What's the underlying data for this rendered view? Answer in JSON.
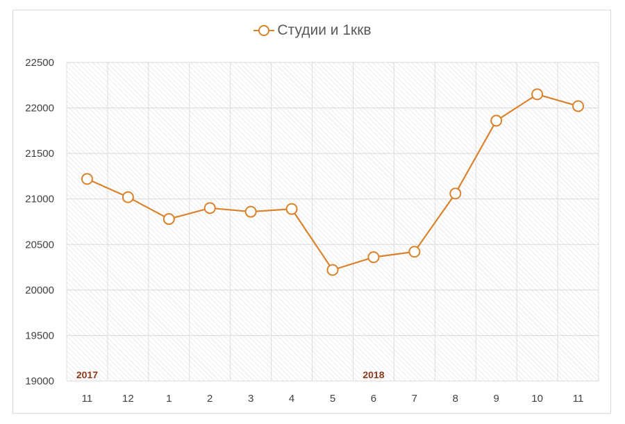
{
  "chart_data": {
    "type": "line",
    "title": "",
    "xlabel": "",
    "ylabel": "",
    "categories": [
      "11",
      "12",
      "1",
      "2",
      "3",
      "4",
      "5",
      "6",
      "7",
      "8",
      "9",
      "10",
      "11"
    ],
    "series": [
      {
        "name": "Студии и 1ккв",
        "color": "#D9822B",
        "values": [
          21220,
          21020,
          20780,
          20900,
          20860,
          20890,
          20220,
          20360,
          20420,
          21060,
          21860,
          22150,
          22020
        ]
      }
    ],
    "ylim": [
      19000,
      22500
    ],
    "yticks": [
      19000,
      19500,
      20000,
      20500,
      21000,
      21500,
      22000,
      22500
    ],
    "legend_position": "top",
    "grid": true,
    "annotations": [
      {
        "text": "2017",
        "category_index": 0,
        "color": "#8B3A1A"
      },
      {
        "text": "2018",
        "category_index": 7,
        "color": "#8B3A1A"
      }
    ]
  }
}
